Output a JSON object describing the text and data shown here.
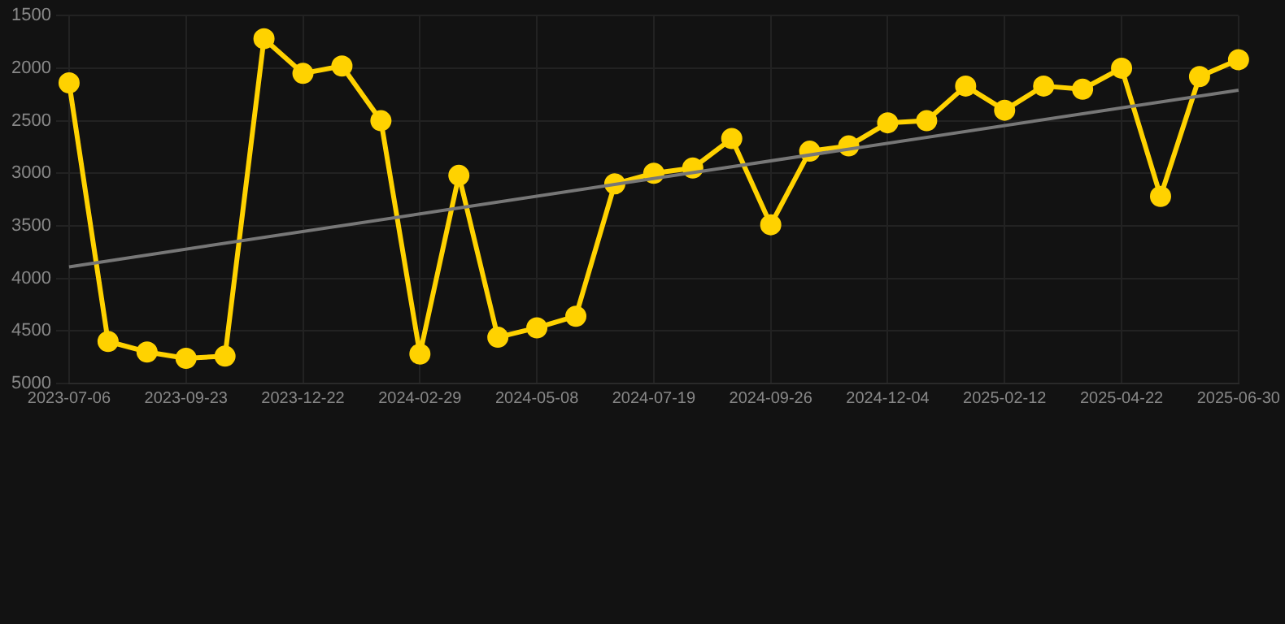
{
  "chart_data": {
    "type": "line",
    "categories": [
      "2023-07-06",
      null,
      null,
      "2023-09-23",
      null,
      null,
      "2023-12-22",
      null,
      null,
      "2024-02-29",
      null,
      null,
      "2024-05-08",
      null,
      null,
      "2024-07-19",
      null,
      null,
      "2024-09-26",
      null,
      null,
      "2024-12-04",
      null,
      null,
      "2025-02-12",
      null,
      null,
      "2025-04-22",
      null,
      null,
      "2025-06-30"
    ],
    "series": [
      {
        "color": "#ffd200",
        "marker": "circle",
        "values": [
          2140,
          4600,
          4700,
          4760,
          4740,
          1720,
          2050,
          1980,
          2500,
          4720,
          3020,
          4560,
          4470,
          4360,
          3100,
          3000,
          2950,
          2670,
          3490,
          2790,
          2740,
          2520,
          2500,
          2170,
          2400,
          2170,
          2200,
          2000,
          3220,
          2080,
          1920
        ]
      },
      {
        "color": "#777777",
        "marker": "none",
        "values": [
          3890,
          null,
          null,
          null,
          null,
          null,
          null,
          null,
          null,
          null,
          null,
          null,
          null,
          null,
          null,
          null,
          null,
          null,
          null,
          null,
          null,
          null,
          null,
          null,
          null,
          null,
          null,
          null,
          null,
          null,
          2210
        ]
      }
    ],
    "ylim": [
      5000,
      1500
    ],
    "yticks": [
      1500,
      2000,
      2500,
      3000,
      3500,
      4000,
      4500,
      5000
    ],
    "grid": true
  }
}
